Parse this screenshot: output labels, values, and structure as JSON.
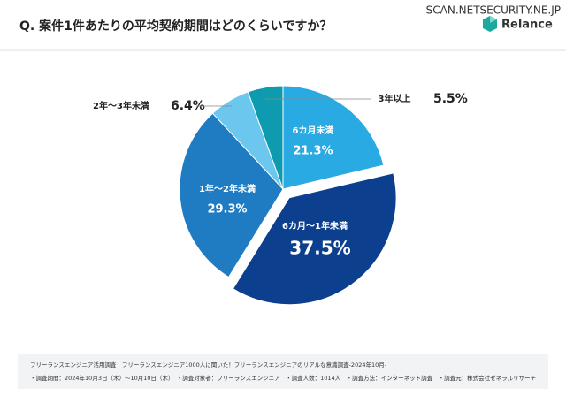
{
  "chart_data": {
    "type": "pie",
    "title": "Q. 案件1件あたりの平均契約期間はどのくらいですか？",
    "categories": [
      "6カ月未満",
      "6カ月〜1年未満",
      "1年〜2年未満",
      "2年〜3年未満",
      "3年以上"
    ],
    "values": [
      21.3,
      37.5,
      29.3,
      6.4,
      5.5
    ],
    "value_labels": [
      "21.3%",
      "37.5%",
      "29.3%",
      "6.4%",
      "5.5%"
    ],
    "colors": [
      "#29aae2",
      "#0d3f8f",
      "#1f7cc3",
      "#6cc7ef",
      "#0e9bb0"
    ],
    "explode": [
      false,
      true,
      false,
      false,
      false
    ]
  },
  "header": {
    "watermark": "SCAN.NETSECURITY.NE.JP",
    "brand": "Relance"
  },
  "footer": {
    "lines": [
      "フリーランスエンジニア活用調査　フリーランスエンジニア1000人に聞いた！フリーランスエンジニアのリアルな意識調査-2024年10月-",
      "・調査期間：2024年10月3日（木）〜10月10日（木）　・調査対象者：フリーランスエンジニア　・調査人数：1014人　・調査方法：インターネット調査　・調査元：株式会社ゼネラルリサーチ"
    ]
  }
}
